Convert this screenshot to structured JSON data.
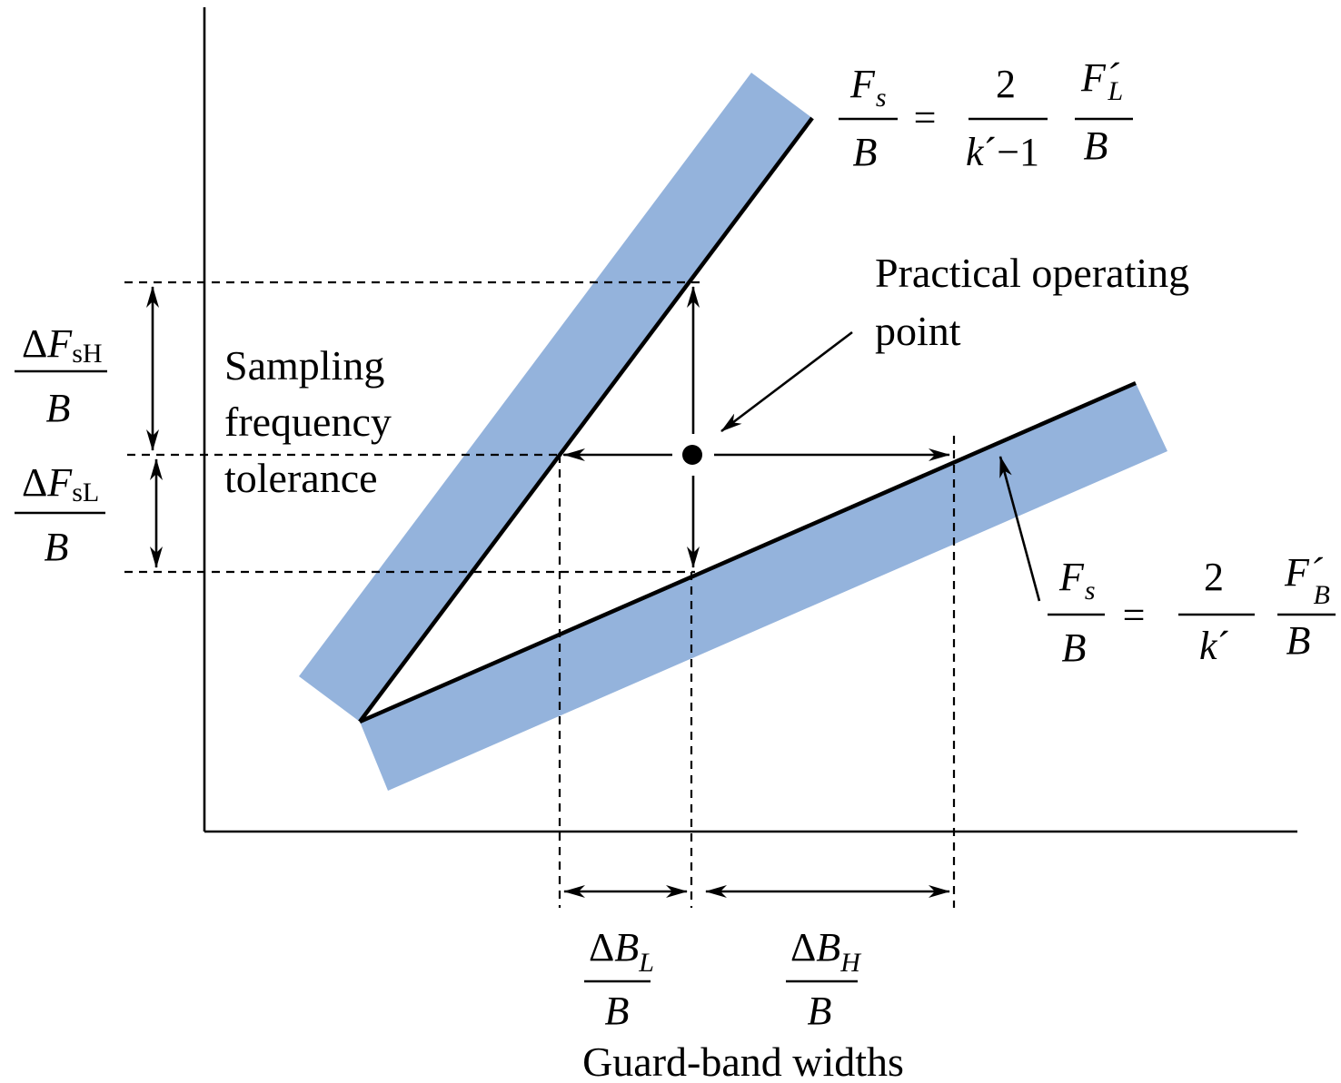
{
  "band_color": "#94b3dc",
  "labels": {
    "sampling_tolerance": [
      "Sampling",
      "frequency",
      "tolerance"
    ],
    "operating_point": [
      "Practical operating",
      "point"
    ],
    "guard_band_widths": "Guard-band widths"
  },
  "upper_line_eq": {
    "lhs_num": "F",
    "lhs_num_sub": "s",
    "lhs_den": "B",
    "equals": "=",
    "coef_num": "2",
    "coef_den_var": "k",
    "coef_den_prime": "´",
    "coef_den_rest": "−1",
    "rhs_num": "F",
    "rhs_num_prime": "´",
    "rhs_num_sub": "L",
    "rhs_den": "B"
  },
  "lower_line_eq": {
    "lhs_num": "F",
    "lhs_num_sub": "s",
    "lhs_den": "B",
    "equals": "=",
    "coef_num": "2",
    "coef_den_var": "k",
    "coef_den_prime": "´",
    "rhs_num": "F",
    "rhs_num_prime": "´",
    "rhs_num_sub": "B",
    "rhs_den": "B"
  },
  "tolerance_high": {
    "delta": "Δ",
    "var": "F",
    "sub": "sH",
    "den": "B"
  },
  "tolerance_low": {
    "delta": "Δ",
    "var": "F",
    "sub": "sL",
    "den": "B"
  },
  "guard_low": {
    "delta": "Δ",
    "var": "B",
    "sub": "L",
    "den": "B"
  },
  "guard_high": {
    "delta": "Δ",
    "var": "B",
    "sub": "H",
    "den": "B"
  }
}
